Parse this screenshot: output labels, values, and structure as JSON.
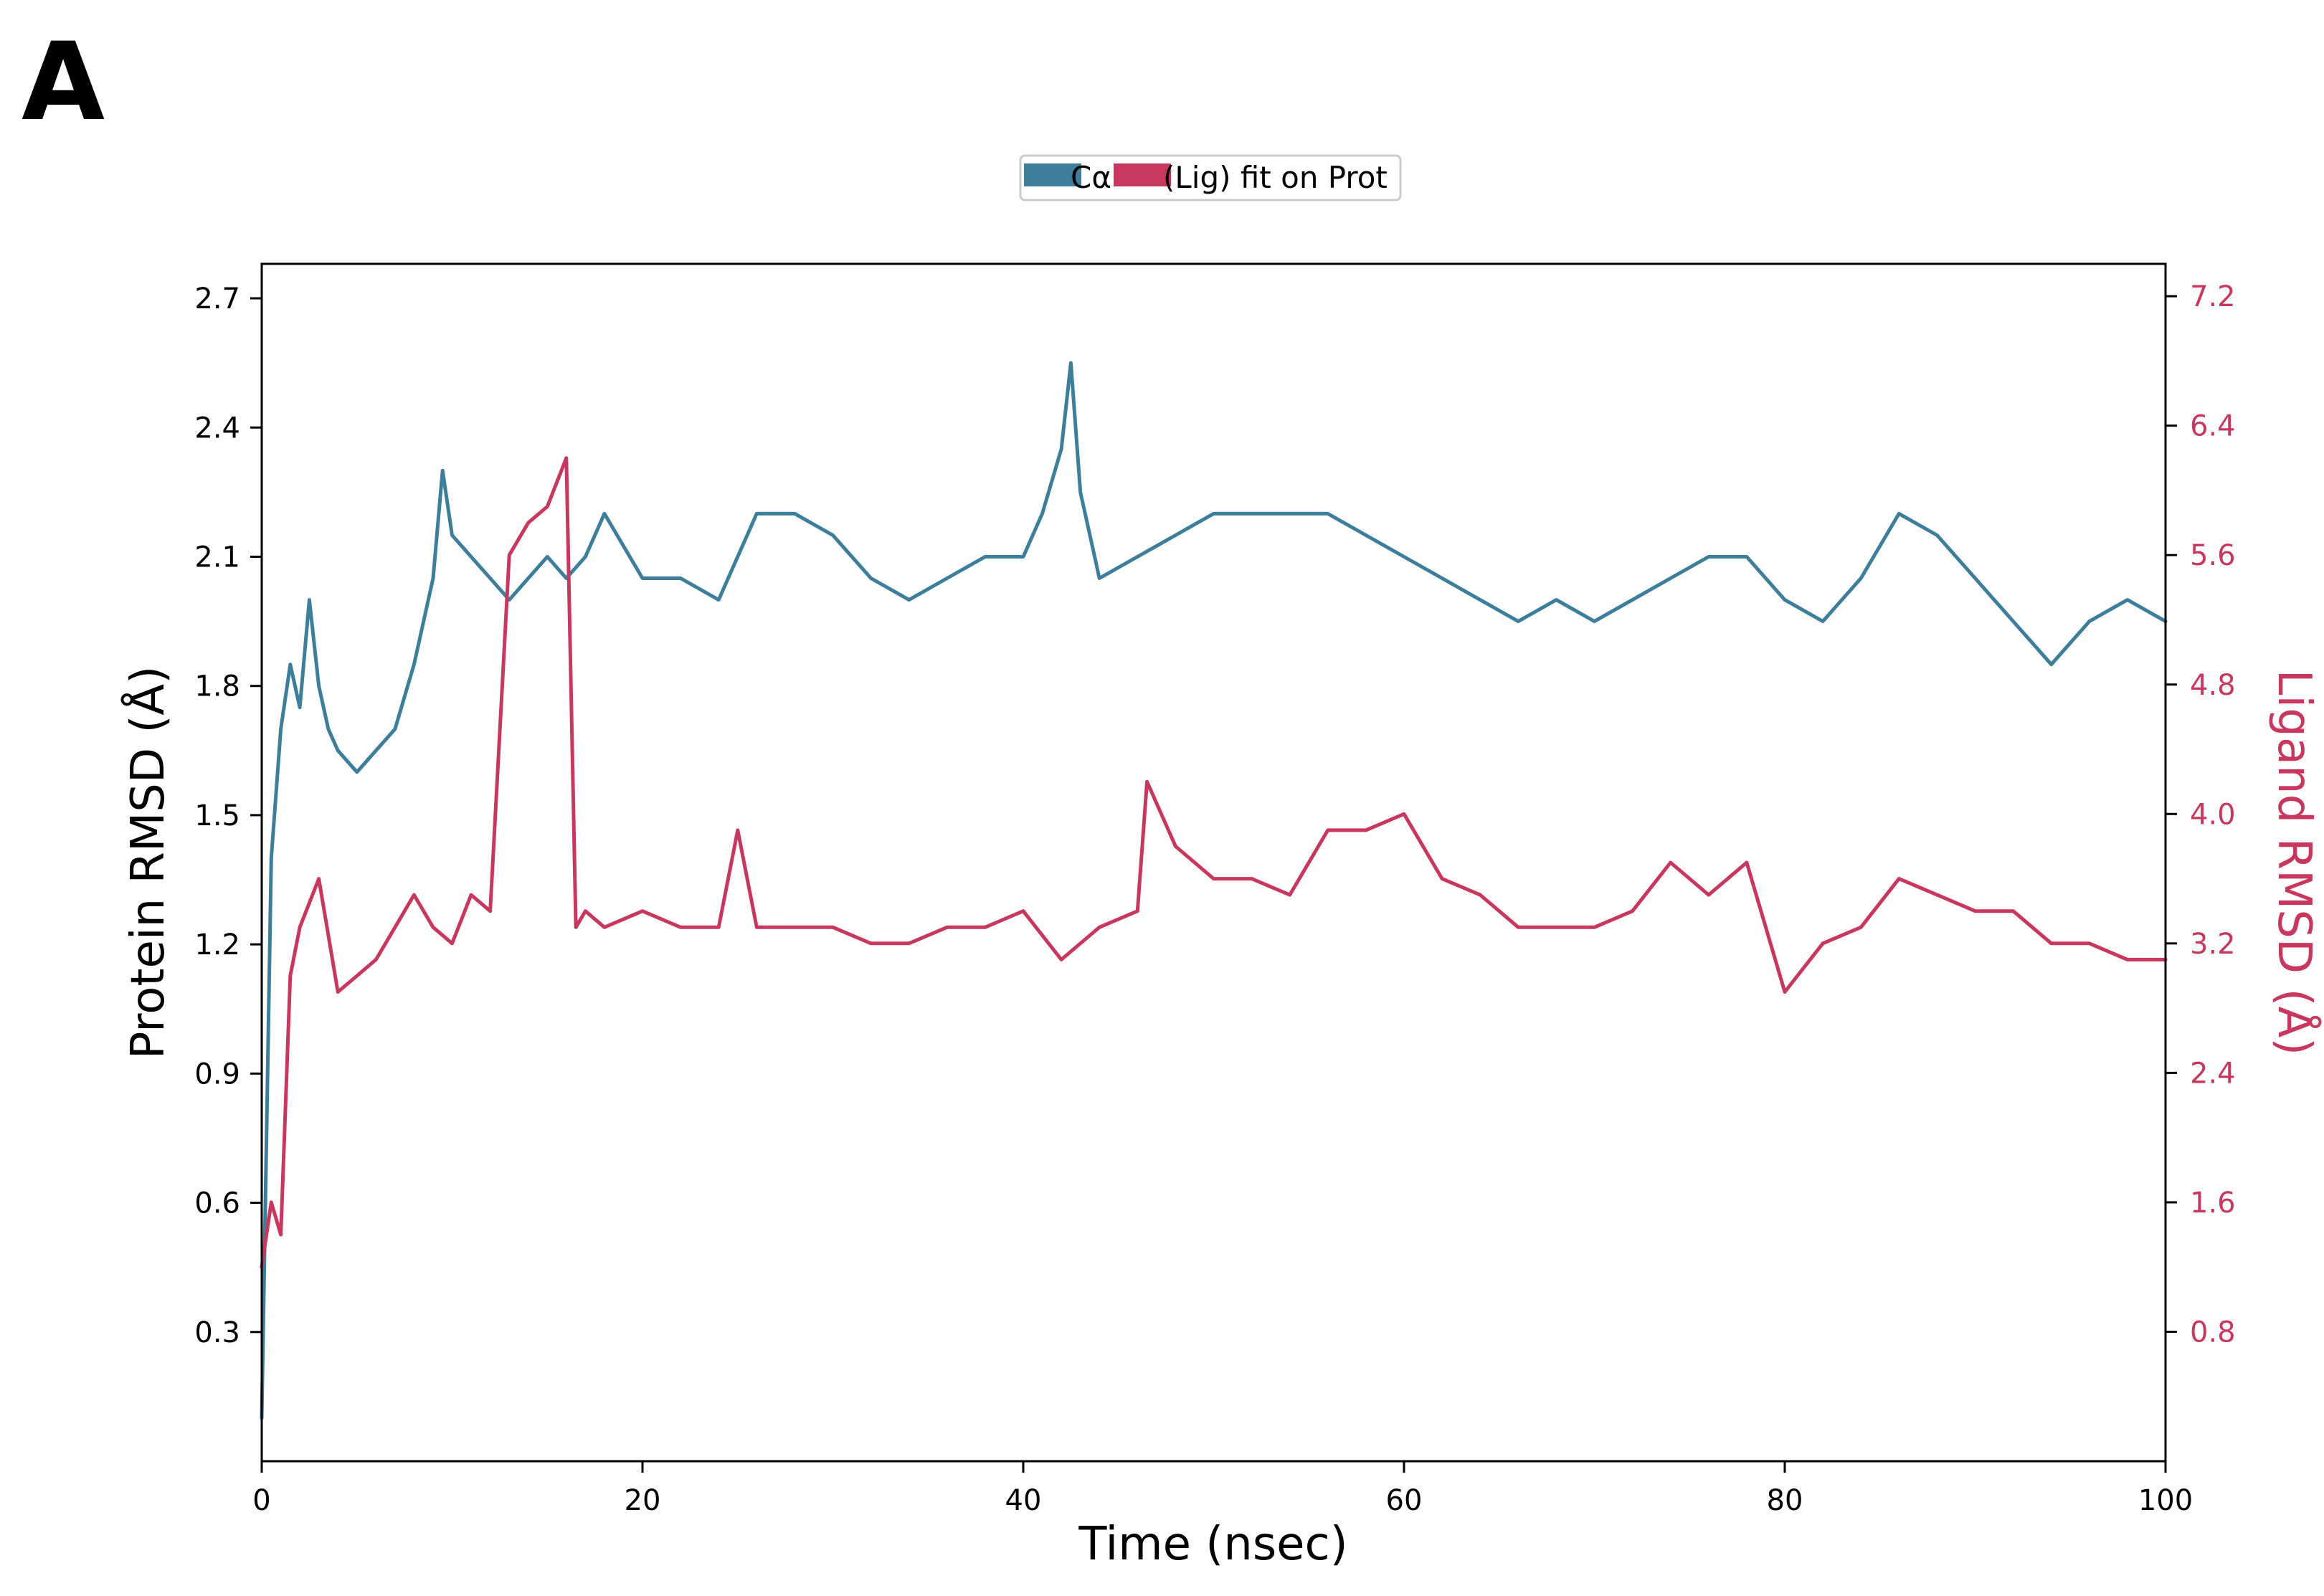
{
  "panel_label": "A",
  "chart_data": {
    "type": "line",
    "title": "",
    "legend": {
      "placement": "top-center",
      "entries": [
        "Cα",
        "(Lig) fit on Prot"
      ]
    },
    "xlabel": "Time (nsec)",
    "ylabel_left": "Protein RMSD (Å)",
    "ylabel_right": "Ligand RMSD (Å)",
    "xlim": [
      0,
      100
    ],
    "ylim_left": [
      0,
      2.78
    ],
    "ylim_right": [
      0,
      7.4
    ],
    "x_ticks": [
      "0",
      "20",
      "40",
      "60",
      "80",
      "100"
    ],
    "y_ticks_left": [
      "0.3",
      "0.6",
      "0.9",
      "1.2",
      "1.5",
      "1.8",
      "2.1",
      "2.4",
      "2.7"
    ],
    "y_ticks_right": [
      "0.8",
      "1.6",
      "2.4",
      "3.2",
      "4.0",
      "4.8",
      "5.6",
      "6.4",
      "7.2"
    ],
    "grid": false,
    "colors": {
      "protein": "#3d7e9a",
      "ligand": "#c8385e",
      "axis": "#000000"
    },
    "series": [
      {
        "name": "Cα",
        "axis": "left",
        "x": [
          0,
          0.5,
          1,
          1.5,
          2,
          2.5,
          3,
          3.5,
          4,
          5,
          6,
          7,
          8,
          9,
          9.5,
          10,
          11,
          12,
          13,
          14,
          15,
          16,
          17,
          18,
          20,
          22,
          24,
          26,
          28,
          30,
          32,
          34,
          36,
          38,
          40,
          41,
          42,
          42.5,
          43,
          44,
          46,
          48,
          50,
          52,
          54,
          56,
          58,
          60,
          62,
          64,
          66,
          68,
          70,
          72,
          74,
          76,
          78,
          80,
          82,
          84,
          86,
          88,
          90,
          92,
          94,
          96,
          98,
          100
        ],
        "y": [
          0.1,
          1.4,
          1.7,
          1.85,
          1.75,
          2.0,
          1.8,
          1.7,
          1.65,
          1.6,
          1.65,
          1.7,
          1.85,
          2.05,
          2.3,
          2.15,
          2.1,
          2.05,
          2.0,
          2.05,
          2.1,
          2.05,
          2.1,
          2.2,
          2.05,
          2.05,
          2.0,
          2.2,
          2.2,
          2.15,
          2.05,
          2.0,
          2.05,
          2.1,
          2.1,
          2.2,
          2.35,
          2.55,
          2.25,
          2.05,
          2.1,
          2.15,
          2.2,
          2.2,
          2.2,
          2.2,
          2.15,
          2.1,
          2.05,
          2.0,
          1.95,
          2.0,
          1.95,
          2.0,
          2.05,
          2.1,
          2.1,
          2.0,
          1.95,
          2.05,
          2.2,
          2.15,
          2.05,
          1.95,
          1.85,
          1.95,
          2.0,
          1.95
        ]
      },
      {
        "name": "(Lig) fit on Prot",
        "axis": "right",
        "x": [
          0,
          0.5,
          1,
          1.5,
          2,
          3,
          4,
          5,
          6,
          7,
          8,
          9,
          10,
          11,
          12,
          13,
          14,
          15,
          16,
          16.5,
          17,
          18,
          20,
          22,
          24,
          25,
          26,
          28,
          30,
          32,
          34,
          36,
          38,
          40,
          42,
          44,
          46,
          46.5,
          48,
          50,
          52,
          54,
          56,
          58,
          60,
          62,
          64,
          66,
          68,
          70,
          72,
          74,
          76,
          78,
          80,
          82,
          84,
          86,
          88,
          90,
          92,
          94,
          96,
          98,
          100
        ],
        "y": [
          1.2,
          1.6,
          1.4,
          3.0,
          3.3,
          3.6,
          2.9,
          3.0,
          3.1,
          3.3,
          3.5,
          3.3,
          3.2,
          3.5,
          3.4,
          5.6,
          5.8,
          5.9,
          6.2,
          3.3,
          3.4,
          3.3,
          3.4,
          3.3,
          3.3,
          3.9,
          3.3,
          3.3,
          3.3,
          3.2,
          3.2,
          3.3,
          3.3,
          3.4,
          3.1,
          3.3,
          3.4,
          4.2,
          3.8,
          3.6,
          3.6,
          3.5,
          3.9,
          3.9,
          4.0,
          3.6,
          3.5,
          3.3,
          3.3,
          3.3,
          3.4,
          3.7,
          3.5,
          3.7,
          2.9,
          3.2,
          3.3,
          3.6,
          3.5,
          3.4,
          3.4,
          3.2,
          3.2,
          3.1,
          3.1
        ]
      }
    ]
  }
}
